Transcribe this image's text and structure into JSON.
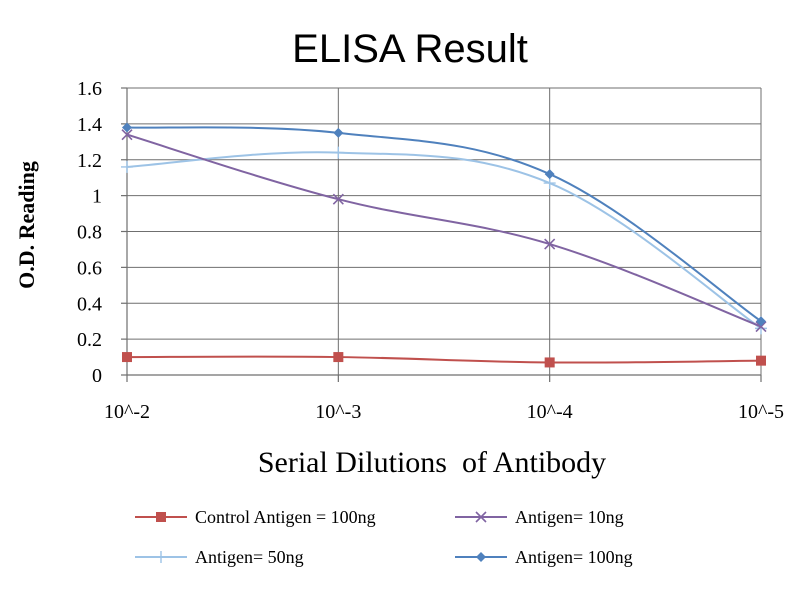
{
  "chart_data": {
    "type": "line",
    "title": "ELISA Result",
    "xlabel": "Serial Dilutions  of Antibody",
    "ylabel": "O.D. Reading",
    "categories": [
      "10^-2",
      "10^-3",
      "10^-4",
      "10^-5"
    ],
    "yticks": [
      "0",
      "0.2",
      "0.4",
      "0.6",
      "0.8",
      "1",
      "1.2",
      "1.4",
      "1.6"
    ],
    "ylim": [
      0,
      1.6
    ],
    "grid": true,
    "legend_position": "bottom",
    "series": [
      {
        "name": "Control Antigen = 100ng",
        "color": "#c0504d",
        "marker": "square",
        "values": [
          0.1,
          0.1,
          0.07,
          0.08
        ]
      },
      {
        "name": "Antigen= 10ng",
        "color": "#8064a2",
        "marker": "x",
        "values": [
          1.34,
          0.98,
          0.73,
          0.27
        ]
      },
      {
        "name": "Antigen= 50ng",
        "color": "#9dc3e6",
        "marker": "plus",
        "values": [
          1.16,
          1.24,
          1.07,
          0.26
        ]
      },
      {
        "name": "Antigen= 100ng",
        "color": "#4f81bd",
        "marker": "diamond",
        "values": [
          1.38,
          1.35,
          1.12,
          0.3
        ]
      }
    ]
  }
}
